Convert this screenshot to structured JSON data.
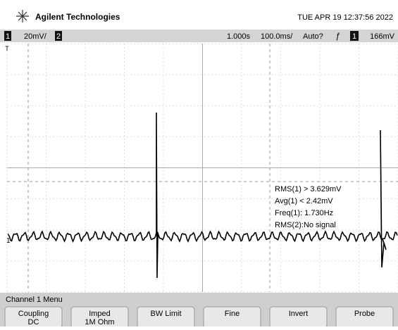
{
  "header": {
    "brand": "Agilent Technologies",
    "datetime": "TUE APR 19 12:37:56 2022"
  },
  "status_bar": {
    "channel1": "1",
    "scale1": "20mV/",
    "channel2": "2",
    "delay": "1.000s",
    "timebase": "100.0ms/",
    "trigger_mode": "Auto?",
    "trigger_source": "1",
    "trigger_level": "166mV"
  },
  "display": {
    "ground_marker": "1",
    "trigger_marker": "T",
    "measurements": [
      "RMS(1) > 3.629mV",
      "Avg(1) < 2.42mV",
      "Freq(1): 1.730Hz",
      "RMS(2):No signal"
    ]
  },
  "menu": {
    "title": "Channel 1 Menu",
    "softkeys": [
      {
        "label": "Coupling",
        "value": "DC"
      },
      {
        "label": "Imped",
        "value": "1M Ohm"
      },
      {
        "label": "BW Limit"
      },
      {
        "label": "Fine"
      },
      {
        "label": "Invert"
      },
      {
        "label": "Probe"
      }
    ]
  }
}
